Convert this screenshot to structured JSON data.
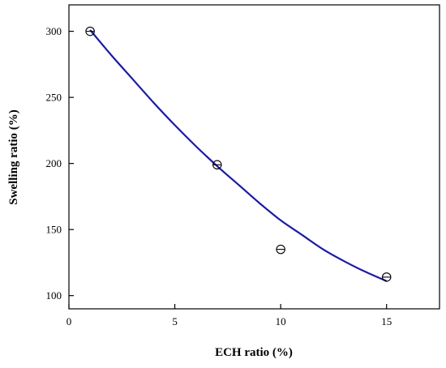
{
  "chart_data": {
    "type": "scatter",
    "title": "",
    "xlabel": "ECH ratio (%)",
    "ylabel": "Swelling ratio (%)",
    "xlim": [
      0,
      17.5
    ],
    "ylim": [
      90,
      320
    ],
    "xticks": [
      0,
      5,
      10,
      15
    ],
    "yticks": [
      100,
      150,
      200,
      250,
      300
    ],
    "grid": false,
    "legend": "none",
    "series": [
      {
        "marker": "circle-with-horizontal-bar",
        "x": [
          1,
          7,
          10,
          15
        ],
        "y": [
          300,
          199,
          135,
          114
        ]
      }
    ],
    "fit_curve": {
      "kind": "polynomial",
      "color": "#1a1aa8",
      "x": [
        1,
        2,
        3,
        4,
        5,
        6,
        7,
        8,
        9,
        10,
        11,
        12,
        13,
        14,
        15
      ],
      "y": [
        301,
        282,
        264,
        246,
        229,
        213,
        198,
        184,
        170,
        157,
        146,
        135,
        126,
        118,
        111
      ]
    }
  }
}
